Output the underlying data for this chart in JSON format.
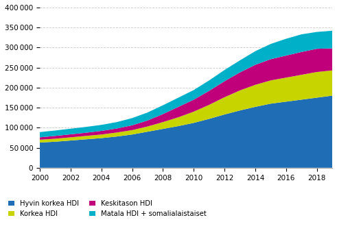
{
  "years": [
    2000,
    2001,
    2002,
    2003,
    2004,
    2005,
    2006,
    2007,
    2008,
    2009,
    2010,
    2011,
    2012,
    2013,
    2014,
    2015,
    2016,
    2017,
    2018,
    2019
  ],
  "hyvin_korkea": [
    63000,
    65000,
    68000,
    71000,
    74000,
    78000,
    83000,
    90000,
    97000,
    104000,
    112000,
    122000,
    133000,
    143000,
    152000,
    160000,
    165000,
    170000,
    175000,
    180000
  ],
  "korkea": [
    7000,
    7500,
    8000,
    8500,
    9000,
    10000,
    11000,
    13000,
    17000,
    22000,
    28000,
    35000,
    43000,
    50000,
    55000,
    58000,
    60000,
    62000,
    64000,
    63000
  ],
  "keskitason": [
    6000,
    7000,
    7500,
    8000,
    9000,
    10000,
    12000,
    15000,
    20000,
    26000,
    30000,
    35000,
    40000,
    45000,
    50000,
    53000,
    55000,
    57000,
    58000,
    55000
  ],
  "matala": [
    13000,
    13500,
    14000,
    14500,
    15000,
    16000,
    18000,
    20000,
    22000,
    23000,
    24000,
    26000,
    28000,
    30000,
    34000,
    38000,
    42000,
    44000,
    42000,
    44000
  ],
  "colors": {
    "hyvin_korkea": "#1f6eb5",
    "korkea": "#c8d400",
    "keskitason": "#c0007a",
    "matala": "#00b0c8"
  },
  "legend_labels": {
    "hyvin_korkea": "Hyvin korkea HDI",
    "korkea": "Korkea HDI",
    "keskitason": "Keskitason HDI",
    "matala": "Matala HDI + somalialaistaiset"
  },
  "ylim": [
    0,
    400000
  ],
  "yticks": [
    0,
    50000,
    100000,
    150000,
    200000,
    250000,
    300000,
    350000,
    400000
  ],
  "xticks": [
    2000,
    2002,
    2004,
    2006,
    2008,
    2010,
    2012,
    2014,
    2016,
    2018
  ],
  "grid_color": "#c8c8c8",
  "background_color": "#ffffff"
}
